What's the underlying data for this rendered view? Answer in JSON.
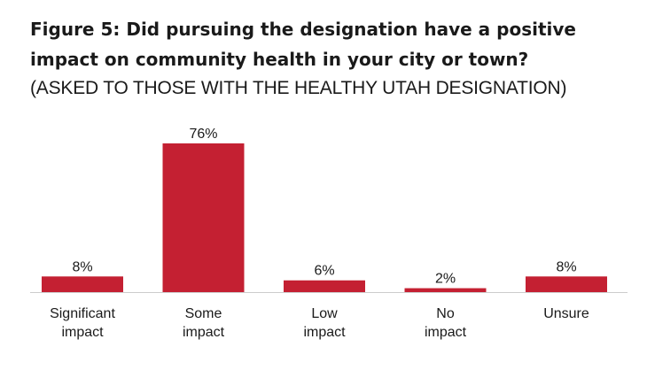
{
  "figure": {
    "title": "Figure 5:  Did pursuing the designation have a positive impact on community health in your city or town?",
    "subtitle": "(ASKED TO THOSE WITH THE HEALTHY UTAH DESIGNATION)"
  },
  "chart_data": {
    "type": "bar",
    "title": "Figure 5:  Did pursuing the designation have a positive impact on community health in your city or town?",
    "subtitle": "(ASKED TO THOSE WITH THE HEALTHY UTAH DESIGNATION)",
    "categories": [
      [
        "Significant",
        "impact"
      ],
      [
        "Some",
        "impact"
      ],
      [
        "Low",
        "impact"
      ],
      [
        "No",
        "impact"
      ],
      [
        "Unsure"
      ]
    ],
    "values": [
      8,
      76,
      6,
      2,
      8
    ],
    "value_labels": [
      "8%",
      "76%",
      "6%",
      "2%",
      "8%"
    ],
    "unit": "%",
    "ylim": [
      0,
      76
    ],
    "grid": false,
    "legend": "none",
    "bar_color": "#c42032",
    "axis_color": "#cccccc"
  }
}
